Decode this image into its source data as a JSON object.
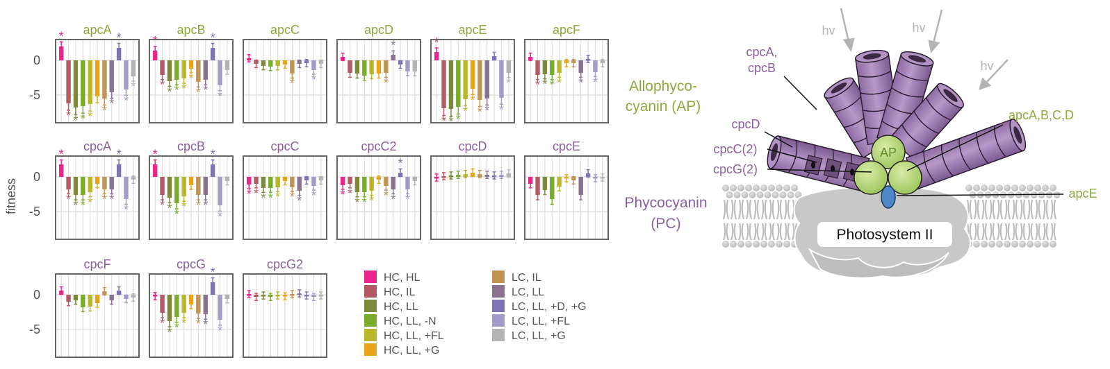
{
  "colors": {
    "conditions": [
      "#e8268c",
      "#b35a64",
      "#7d8a3a",
      "#78ad2c",
      "#b8b82a",
      "#e8a517",
      "#c19455",
      "#8a7390",
      "#7f73b5",
      "#a49cc8",
      "#b4b4b4"
    ],
    "ap_green": "#8aaa3a",
    "pc_purple": "#8a5f9c",
    "panel_border": "#666666",
    "grid": "#dddddd",
    "ap_sphere": "#b7d977",
    "ps2_gray": "#c4c4c4",
    "rod_purple": "#a887b8",
    "cpce_blue": "#4f86c6"
  },
  "y_axis": {
    "label": "fitness",
    "ticks": [
      {
        "value": 0,
        "label": "0"
      },
      {
        "value": -5,
        "label": "-5"
      }
    ],
    "range": [
      -9,
      3
    ]
  },
  "groups": {
    "ap_label": [
      "Allophyco-",
      "cyanin (AP)"
    ],
    "pc_label": [
      "Phycocyanin",
      "(PC)"
    ]
  },
  "chart_data": [
    {
      "type": "bar",
      "title": "apcA",
      "group": "AP",
      "values": [
        2.0,
        -6.2,
        -6.8,
        -6.6,
        -6.3,
        -5.2,
        -5.5,
        -4.6,
        1.8,
        -4.2,
        -2.3
      ],
      "stars": [
        true,
        true,
        true,
        true,
        true,
        false,
        true,
        true,
        true,
        true,
        true
      ]
    },
    {
      "type": "bar",
      "title": "apcB",
      "group": "AP",
      "values": [
        1.4,
        -2.1,
        -3.0,
        -2.8,
        -2.6,
        -1.2,
        -3.1,
        -2.8,
        1.8,
        -3.6,
        -1.4
      ],
      "stars": [
        true,
        true,
        true,
        true,
        true,
        true,
        true,
        true,
        true,
        true,
        false
      ]
    },
    {
      "type": "bar",
      "title": "apcC",
      "group": "AP",
      "values": [
        0.3,
        -0.5,
        -0.8,
        -0.9,
        -0.8,
        -0.6,
        -1.9,
        -0.5,
        -0.4,
        -1.4,
        -0.5
      ],
      "stars": [
        false,
        false,
        false,
        false,
        false,
        false,
        true,
        false,
        false,
        true,
        false
      ]
    },
    {
      "type": "bar",
      "title": "apcD",
      "group": "AP",
      "values": [
        0.5,
        -1.8,
        -1.9,
        -2.2,
        -2.0,
        -1.9,
        -1.8,
        0.8,
        -0.6,
        -1.6,
        -1.6
      ],
      "stars": [
        false,
        false,
        false,
        false,
        false,
        false,
        true,
        true,
        false,
        false,
        false
      ]
    },
    {
      "type": "bar",
      "title": "apcE",
      "group": "AP",
      "values": [
        1.2,
        -6.9,
        -7.0,
        -6.7,
        -5.6,
        -4.1,
        -5.7,
        -5.5,
        0.6,
        -5.4,
        -1.8
      ],
      "stars": [
        true,
        true,
        true,
        true,
        true,
        true,
        true,
        true,
        false,
        true,
        true
      ]
    },
    {
      "type": "bar",
      "title": "apcF",
      "group": "AP",
      "values": [
        0.5,
        -2.1,
        -2.0,
        -2.1,
        -1.8,
        -0.4,
        -0.4,
        -1.8,
        0.2,
        -1.7,
        -0.4
      ],
      "stars": [
        false,
        true,
        true,
        true,
        true,
        false,
        false,
        true,
        false,
        true,
        false
      ]
    },
    {
      "type": "bar",
      "title": "cpcA",
      "group": "PC",
      "values": [
        1.8,
        -1.8,
        -2.6,
        -2.6,
        -2.2,
        -1.0,
        -1.8,
        -1.8,
        1.8,
        -3.2,
        -0.4
      ],
      "stars": [
        true,
        true,
        true,
        true,
        true,
        false,
        true,
        true,
        true,
        true,
        false
      ]
    },
    {
      "type": "bar",
      "title": "cpcB",
      "group": "PC",
      "values": [
        1.8,
        -2.6,
        -3.0,
        -3.8,
        -2.8,
        -1.2,
        -2.6,
        -2.6,
        1.8,
        -4.1,
        -0.6
      ],
      "stars": [
        true,
        true,
        true,
        true,
        true,
        false,
        true,
        true,
        true,
        true,
        false
      ]
    },
    {
      "type": "bar",
      "title": "cpcC",
      "group": "PC",
      "values": [
        -1.1,
        -1.0,
        -1.6,
        -1.6,
        -1.5,
        -0.6,
        -1.5,
        -2.0,
        -0.5,
        -1.3,
        -0.5
      ],
      "stars": [
        true,
        true,
        true,
        true,
        true,
        false,
        true,
        true,
        false,
        true,
        false
      ]
    },
    {
      "type": "bar",
      "title": "cpcC2",
      "group": "PC",
      "values": [
        -1.2,
        -1.0,
        -2.2,
        -2.2,
        -2.0,
        -0.4,
        -1.3,
        -1.8,
        0.6,
        -1.8,
        -0.6
      ],
      "stars": [
        true,
        true,
        true,
        true,
        true,
        false,
        true,
        true,
        true,
        true,
        false
      ]
    },
    {
      "type": "bar",
      "title": "cpcD",
      "group": "PC",
      "values": [
        -0.1,
        0.1,
        0.2,
        0.3,
        0.4,
        0.6,
        0.4,
        0.3,
        0.2,
        0.3,
        0.5
      ],
      "stars": [
        false,
        false,
        false,
        false,
        false,
        false,
        false,
        false,
        false,
        false,
        false
      ]
    },
    {
      "type": "bar",
      "title": "cpcE",
      "group": "PC",
      "values": [
        -1.0,
        -2.6,
        -1.9,
        -3.2,
        -1.4,
        -0.2,
        -0.5,
        -2.6,
        0.5,
        -0.2,
        -0.1
      ],
      "stars": [
        false,
        false,
        false,
        false,
        false,
        false,
        false,
        false,
        false,
        false,
        false
      ]
    },
    {
      "type": "bar",
      "title": "cpcF",
      "group": "PC",
      "values": [
        0.6,
        -1.0,
        -0.8,
        -1.8,
        -1.7,
        -1.2,
        0.5,
        -0.8,
        0.6,
        -0.6,
        -0.4
      ],
      "stars": [
        false,
        false,
        false,
        false,
        false,
        false,
        false,
        false,
        false,
        false,
        false
      ]
    },
    {
      "type": "bar",
      "title": "cpcG",
      "group": "PC",
      "values": [
        -0.2,
        -2.6,
        -3.8,
        -3.2,
        -2.6,
        -1.4,
        -2.7,
        -2.8,
        1.8,
        -3.6,
        -0.6
      ],
      "stars": [
        false,
        true,
        true,
        true,
        true,
        false,
        true,
        true,
        true,
        true,
        false
      ]
    },
    {
      "type": "bar",
      "title": "cpcG2",
      "group": "PC",
      "values": [
        0.1,
        -0.3,
        -0.1,
        -0.3,
        -0.1,
        -0.2,
        0.1,
        0.2,
        -0.1,
        -0.3,
        -0.1
      ],
      "stars": [
        false,
        false,
        false,
        false,
        false,
        false,
        false,
        false,
        false,
        false,
        false
      ]
    }
  ],
  "legend": [
    {
      "label": "HC, HL"
    },
    {
      "label": "HC, IL"
    },
    {
      "label": "HC, LL"
    },
    {
      "label": "HC, LL, -N"
    },
    {
      "label": "HC, LL, +FL"
    },
    {
      "label": "HC, LL, +G"
    },
    {
      "label": "LC, IL"
    },
    {
      "label": "LC, LL"
    },
    {
      "label": "LC, LL, +D, +G"
    },
    {
      "label": "LC, LL, +FL"
    },
    {
      "label": "LC, LL, +G"
    }
  ],
  "star_symbol": "*",
  "diagram": {
    "hv": "hv",
    "cpcAB": [
      "cpcA,",
      "cpcB"
    ],
    "cpcD": "cpcD",
    "cpcC2": "cpcC(2)",
    "cpcG2": "cpcG(2)",
    "apcABCD": "apcA,B,C,D",
    "AP": "AP",
    "apcE": "apcE",
    "ps2": "Photosystem II"
  }
}
